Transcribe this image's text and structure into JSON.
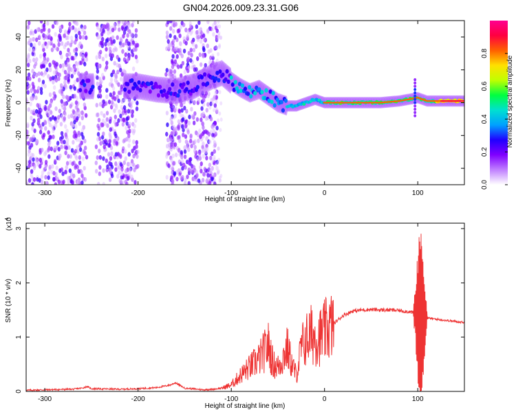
{
  "title": "GN04.2026.009.23.31.G06",
  "chart_data": [
    {
      "type": "heatmap",
      "name": "spectrogram",
      "xlabel": "Height of straight line (km)",
      "ylabel": "Frequency (Hz)",
      "xlim": [
        -320,
        150
      ],
      "ylim": [
        -50,
        50
      ],
      "xticks": [
        -300,
        -200,
        -100,
        0,
        100
      ],
      "yticks": [
        -40,
        -20,
        0,
        20,
        40
      ],
      "colorbar": {
        "label": "Normalized spectral amplitude",
        "range": [
          0,
          1
        ],
        "ticks": [
          "0.0",
          "0.2",
          "0.4",
          "0.6",
          "0.8"
        ],
        "tick_values": [
          0,
          0.2,
          0.4,
          0.6,
          0.8
        ],
        "colors": [
          "#ffffff",
          "#c080ff",
          "#8000ff",
          "#2000ff",
          "#00a0ff",
          "#00e0d0",
          "#00ff40",
          "#c0ff00",
          "#ffe000",
          "#ff6000",
          "#ff0040",
          "#ff0090"
        ]
      },
      "dominant_frequency_track": {
        "x": [
          -260,
          -240,
          -200,
          -180,
          -160,
          -140,
          -120,
          -110,
          -100,
          -90,
          -80,
          -70,
          -60,
          -50,
          -40,
          -30,
          -20,
          -10,
          0,
          20,
          40,
          60,
          80,
          90,
          100,
          110,
          130,
          150
        ],
        "y": [
          10,
          10,
          10,
          8,
          7,
          10,
          16,
          18,
          13,
          9,
          6,
          8,
          4,
          0,
          -2,
          -2,
          0,
          2,
          0,
          0,
          0,
          0,
          1,
          2,
          3,
          1,
          1,
          1
        ]
      },
      "noise_regions": [
        [
          -320,
          -255
        ],
        [
          -245,
          -200
        ],
        [
          -170,
          -160
        ],
        [
          -165,
          -115
        ]
      ]
    },
    {
      "type": "line",
      "name": "snr",
      "xlabel": "Height of straight line (km)",
      "ylabel": "SNR (10 * v/v)",
      "scale_label": "(x10",
      "scale_exp": "4",
      "xlim": [
        -320,
        150
      ],
      "ylim": [
        0,
        3.1
      ],
      "xticks": [
        -300,
        -200,
        -100,
        0,
        100
      ],
      "yticks": [
        0,
        1,
        2,
        3
      ],
      "color": "#ee3333",
      "series": [
        {
          "name": "SNR",
          "x": [
            -320,
            -300,
            -270,
            -260,
            -255,
            -250,
            -220,
            -200,
            -180,
            -165,
            -160,
            -150,
            -130,
            -120,
            -110,
            -100,
            -90,
            -80,
            -70,
            -60,
            -55,
            -50,
            -45,
            -40,
            -35,
            -30,
            -25,
            -20,
            -15,
            -10,
            -5,
            0,
            10,
            20,
            30,
            40,
            50,
            60,
            70,
            80,
            90,
            95,
            100,
            103,
            105,
            108,
            110,
            120,
            135,
            150
          ],
          "y": [
            0.02,
            0.03,
            0.04,
            0.06,
            0.09,
            0.05,
            0.04,
            0.05,
            0.07,
            0.12,
            0.16,
            0.06,
            0.03,
            0.04,
            0.06,
            0.12,
            0.3,
            0.45,
            0.6,
            0.85,
            0.5,
            0.45,
            0.6,
            0.8,
            0.5,
            0.3,
            0.8,
            0.95,
            1.05,
            1.0,
            1.0,
            1.1,
            1.25,
            1.4,
            1.48,
            1.5,
            1.51,
            1.5,
            1.5,
            1.49,
            1.47,
            1.45,
            1.4,
            3.0,
            0.3,
            2.0,
            1.35,
            1.33,
            1.3,
            1.27
          ]
        }
      ]
    }
  ]
}
